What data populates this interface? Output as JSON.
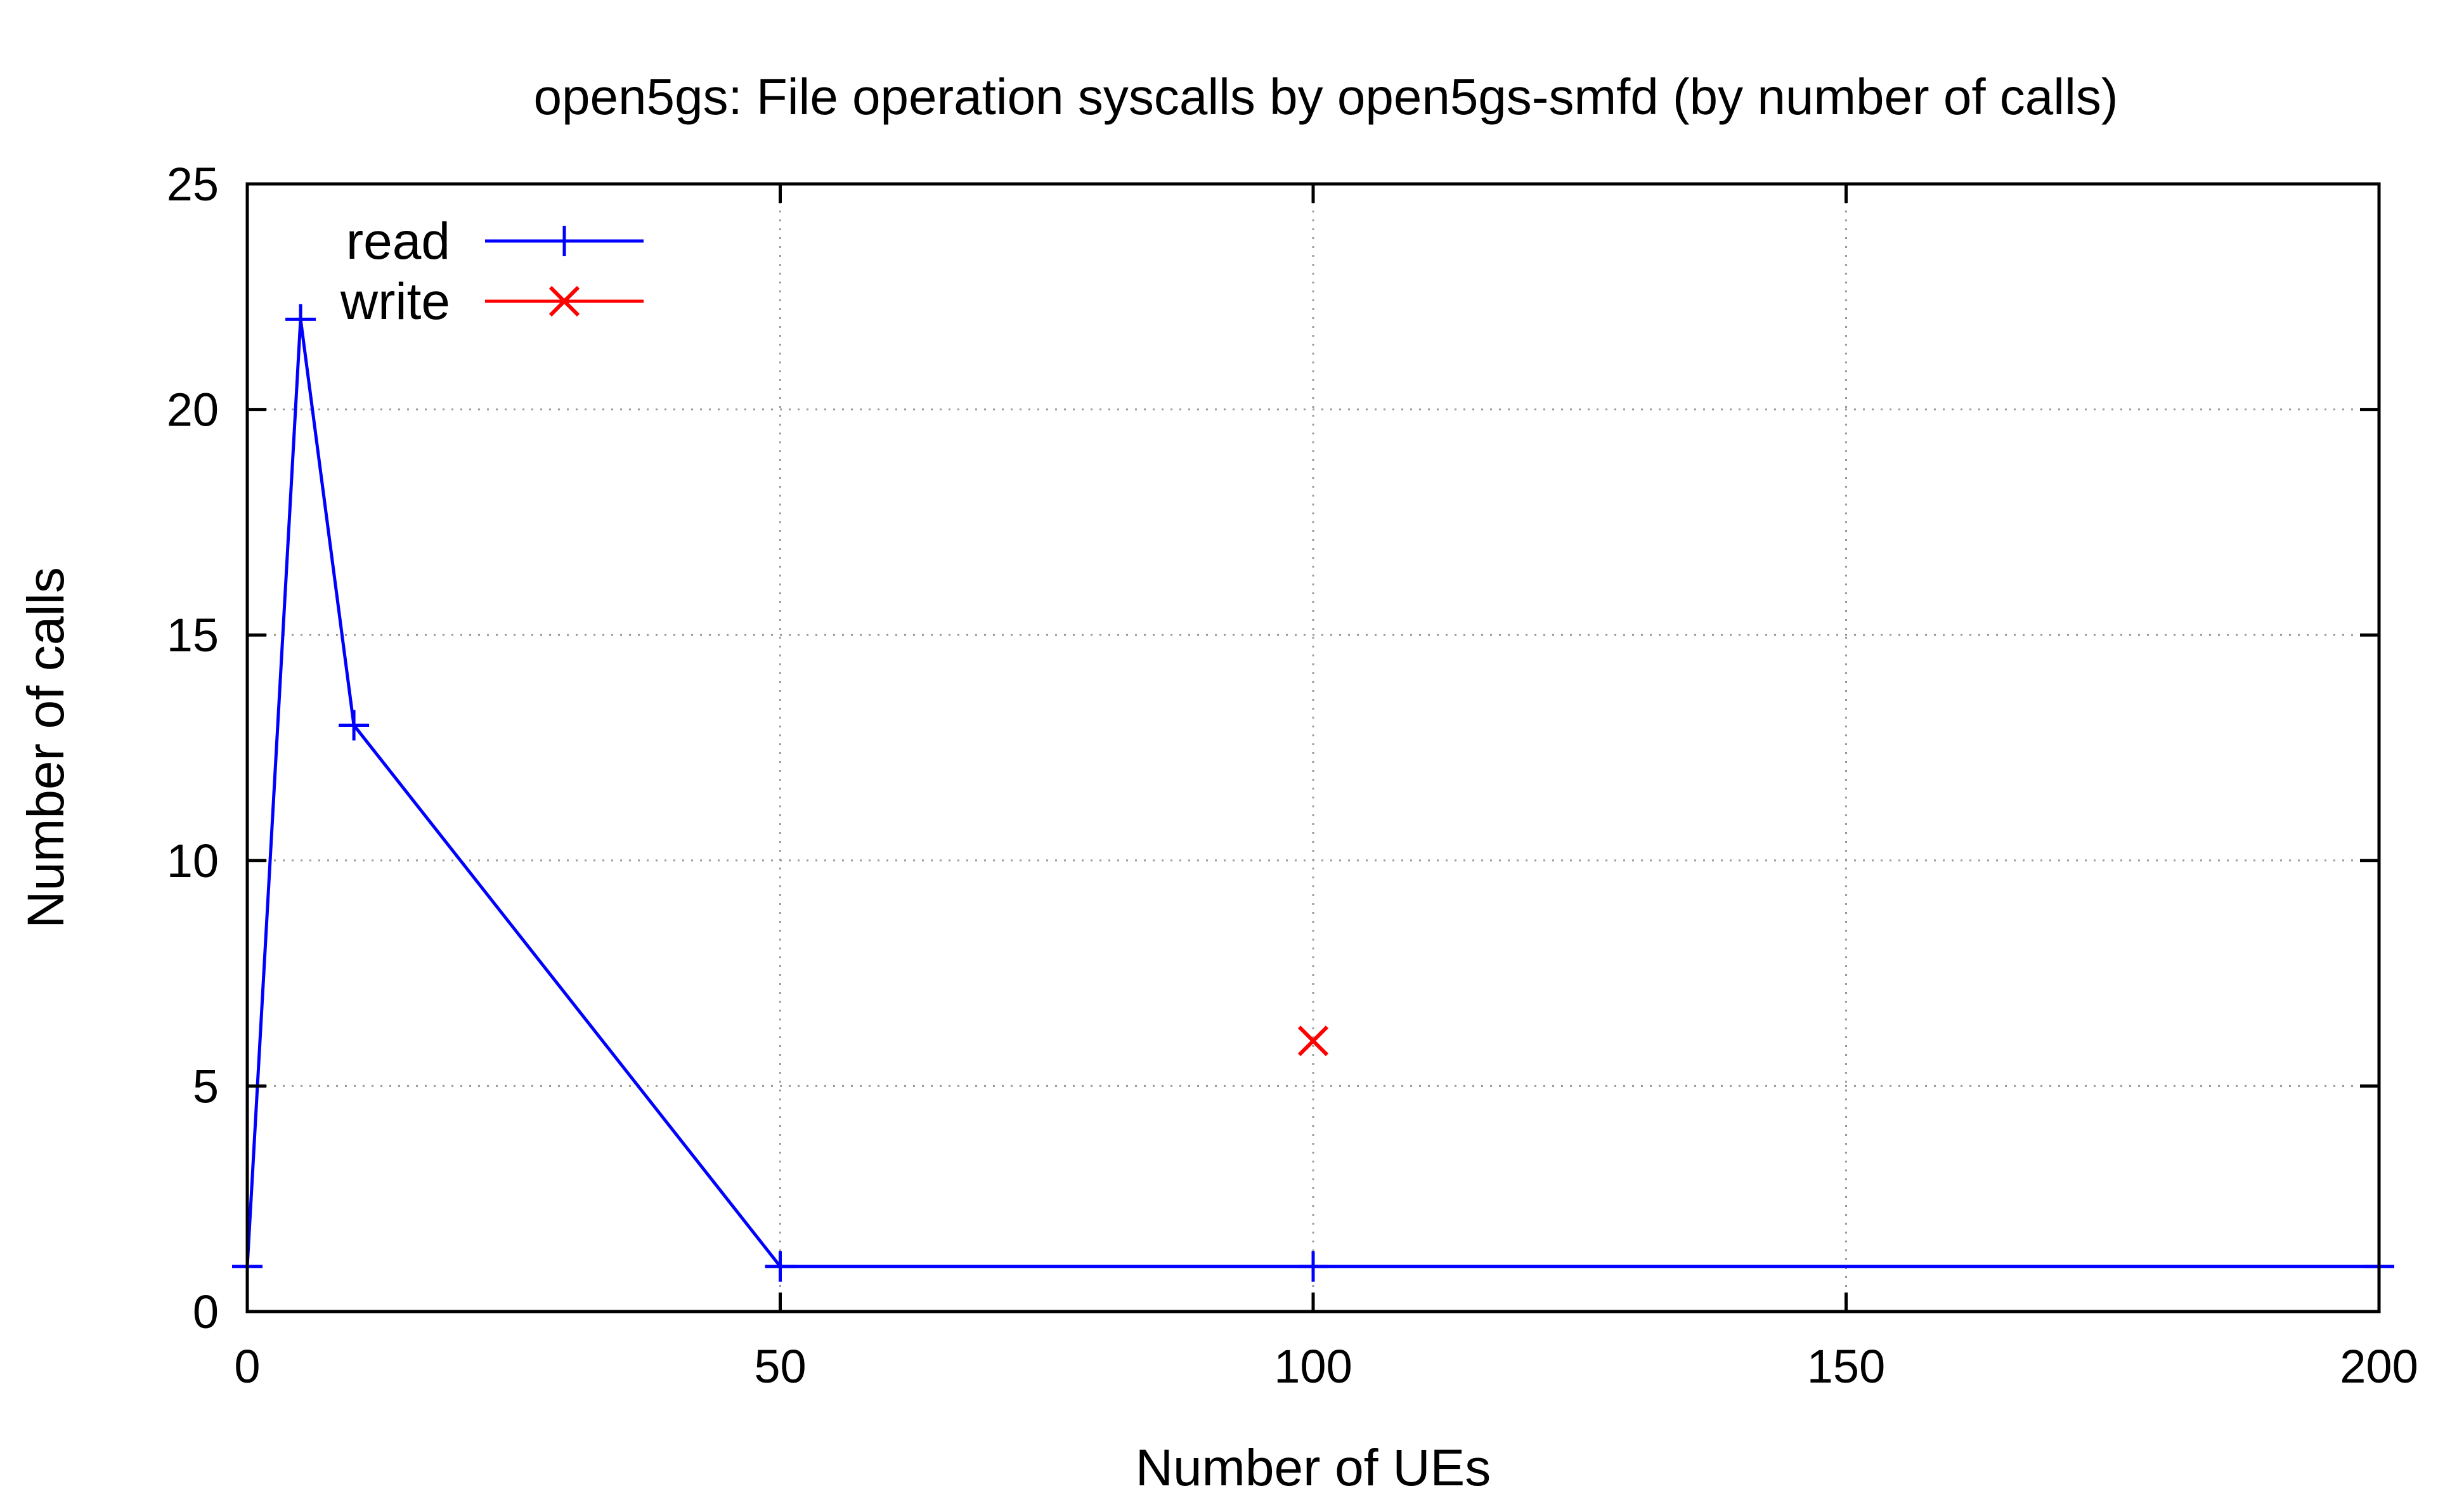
{
  "chart_data": {
    "type": "line",
    "title": "open5gs: File operation syscalls by open5gs-smfd (by number of calls)",
    "xlabel": "Number of UEs",
    "ylabel": "Number of calls",
    "xlim": [
      0,
      200
    ],
    "ylim": [
      0,
      25
    ],
    "xticks": [
      0,
      50,
      100,
      150,
      200
    ],
    "yticks": [
      0,
      5,
      10,
      15,
      20,
      25
    ],
    "grid": true,
    "legend_position": "top-left",
    "series": [
      {
        "name": "read",
        "color": "#0000ff",
        "marker": "plus",
        "line": true,
        "points": [
          {
            "x": 0,
            "y": 1
          },
          {
            "x": 5,
            "y": 22
          },
          {
            "x": 10,
            "y": 13
          },
          {
            "x": 50,
            "y": 1
          },
          {
            "x": 100,
            "y": 1
          },
          {
            "x": 200,
            "y": 1
          }
        ]
      },
      {
        "name": "write",
        "color": "#ff0000",
        "marker": "cross",
        "line": true,
        "points": [
          {
            "x": 100,
            "y": 6
          }
        ]
      }
    ]
  }
}
